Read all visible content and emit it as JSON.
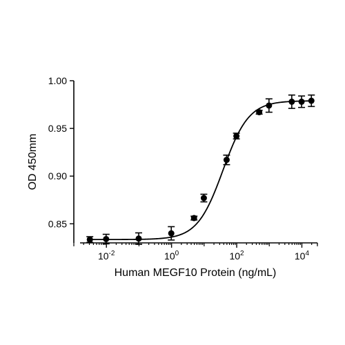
{
  "chart_data": {
    "type": "scatter",
    "title": "",
    "xlabel": "Human MEGF10 Protein (ng/mL)",
    "ylabel": "OD 450mm",
    "xscale": "log",
    "xlim": [
      0.001,
      30000
    ],
    "ylim": [
      0.83,
      1.0
    ],
    "y_ticks": [
      0.85,
      0.9,
      0.95,
      1.0
    ],
    "y_tick_labels": [
      "0.85",
      "0.90",
      "0.95",
      "1.00"
    ],
    "x_tick_labels": [
      {
        "base": "10",
        "exp": "-2"
      },
      {
        "base": "10",
        "exp": "0"
      },
      {
        "base": "10",
        "exp": "2"
      },
      {
        "base": "10",
        "exp": "4"
      }
    ],
    "x_tick_values": [
      0.01,
      1,
      100,
      10000
    ],
    "grid": false,
    "legend": "none",
    "points": [
      {
        "x": 0.0031,
        "y": 0.8335,
        "err": 0.003
      },
      {
        "x": 0.0098,
        "y": 0.834,
        "err": 0.005
      },
      {
        "x": 0.098,
        "y": 0.8345,
        "err": 0.006
      },
      {
        "x": 0.98,
        "y": 0.84,
        "err": 0.007
      },
      {
        "x": 4.9,
        "y": 0.856,
        "err": 0.002
      },
      {
        "x": 9.8,
        "y": 0.877,
        "err": 0.004
      },
      {
        "x": 49,
        "y": 0.917,
        "err": 0.005
      },
      {
        "x": 98,
        "y": 0.942,
        "err": 0.003
      },
      {
        "x": 490,
        "y": 0.967,
        "err": 0.002
      },
      {
        "x": 980,
        "y": 0.974,
        "err": 0.007
      },
      {
        "x": 4900,
        "y": 0.978,
        "err": 0.007
      },
      {
        "x": 9800,
        "y": 0.978,
        "err": 0.006
      },
      {
        "x": 19600,
        "y": 0.979,
        "err": 0.006
      }
    ],
    "fit": {
      "model": "4PL",
      "bottom": 0.8335,
      "top": 0.979,
      "ec50": 38,
      "hill": 1.1
    },
    "series_color": "#000000"
  }
}
